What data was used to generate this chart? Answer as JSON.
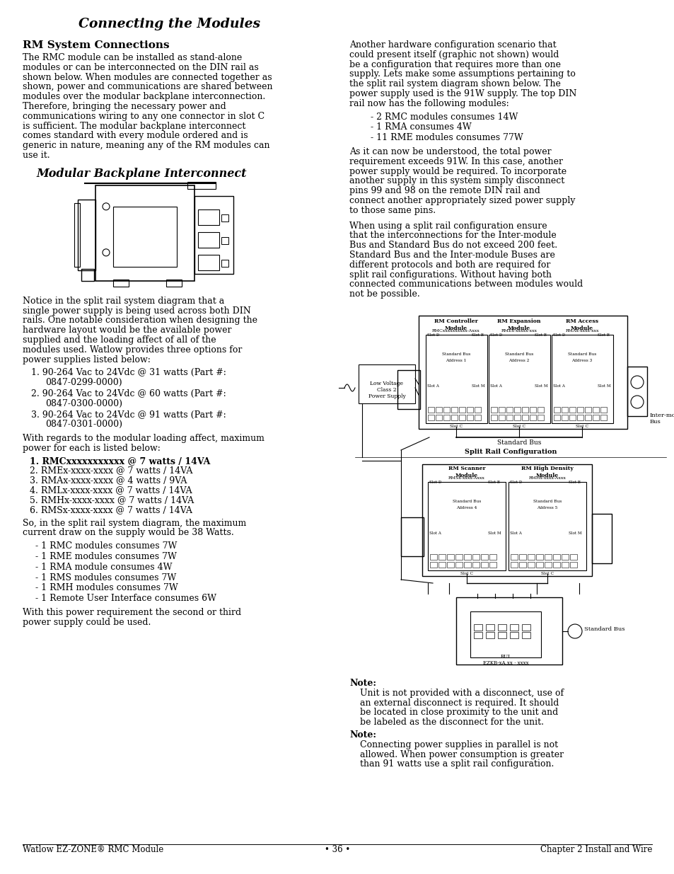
{
  "title": "Connecting the Modules",
  "bg_color": "#ffffff",
  "text_color": "#000000",
  "left_col": {
    "section_heading": "RM System Connections",
    "para1": "The RMC module can be installed as stand-alone modules or can be interconnected on the DIN rail as shown below. When modules are connected together as shown, power and communications are shared between modules over the modular backplane interconnection. Therefore, bringing the necessary power and communications wiring to any one connector in slot C is sufficient. The modular backplane interconnect comes standard with every module ordered and is generic in nature, meaning any of the RM modules can use it.",
    "diagram_title": "Modular Backplane Interconnect",
    "para2": "Notice in the split rail system diagram that a single power supply is being used across both DIN rails. One notable consideration when designing the hardware layout would be the available power supplied and the loading affect of all of the modules used. Watlow provides three options for power supplies listed below:",
    "list1": [
      "90-264 Vac to 24Vdc @ 31 watts (Part #: 0847-0299-0000)",
      "90-264 Vac to 24Vdc @ 60 watts (Part #: 0847-0300-0000)",
      "90-264 Vac to 24Vdc @ 91 watts (Part #: 0847-0301-0000)"
    ],
    "para3": "With regards to the modular loading affect, maximum power for each is listed below:",
    "list2_bold_first": "RMCxxxxxxxxxxx @ 7 watts / 14VA",
    "list2": [
      "RMEx-xxxx-xxxx @ 7 watts / 14VA",
      "RMAx-xxxx-xxxx @ 4 watts / 9VA",
      "RMLx-xxxx-xxxx @ 7 watts / 14VA",
      "RMHx-xxxx-xxxx @ 7 watts / 14VA",
      "RMSx-xxxx-xxxx @ 7 watts / 14VA"
    ],
    "para4": "So, in the split rail system diagram, the maximum current draw on the supply would be 38 Watts.",
    "list3": [
      "1 RMC modules consumes 7W",
      "1 RME modules consumes 7W",
      "1 RMA module consumes 4W",
      "1 RMS modules consumes 7W",
      "1 RMH modules consumes 7W",
      "1 Remote User Interface consumes 6W"
    ],
    "para5": "With this power requirement the second or third power supply could be used."
  },
  "right_col": {
    "para1": "Another hardware configuration scenario that could present itself (graphic not shown) would be a configuration that requires more than one supply. Lets make some assumptions pertaining to the split rail system diagram shown below. The power supply used is the 91W supply. The top DIN rail now has the following modules:",
    "list1": [
      "2 RMC modules consumes 14W",
      "1 RMA consumes 4W",
      "11 RME modules consumes 77W"
    ],
    "para2": "As it can now be understood, the total power requirement exceeds 91W. In this case, another power supply would be required. To incorporate another supply in this system simply disconnect pins 99 and 98 on the remote DIN rail and connect another appropriately sized power supply to those same pins.",
    "para3": "When using a split rail configuration ensure that the interconnections for the Inter-module Bus and Standard Bus do not exceed 200 feet. Standard Bus and the Inter-module Buses are different protocols and both are required for split rail configurations. Without having both connected communications between modules would not be possible.",
    "note1_label": "Note:",
    "note1": "Unit is not provided with a disconnect, use of an external disconnect is required. It should be located in close proximity to the unit and be labeled as the disconnect for the unit.",
    "note2_label": "Note:",
    "note2": "Connecting power supplies in parallel is not allowed. When power consumption is greater than 91 watts use a split rail configuration."
  },
  "footer_left": "Watlow EZ-ZONE® RMC Module",
  "footer_center": "• 36 •",
  "footer_right": "Chapter 2 Install and Wire"
}
